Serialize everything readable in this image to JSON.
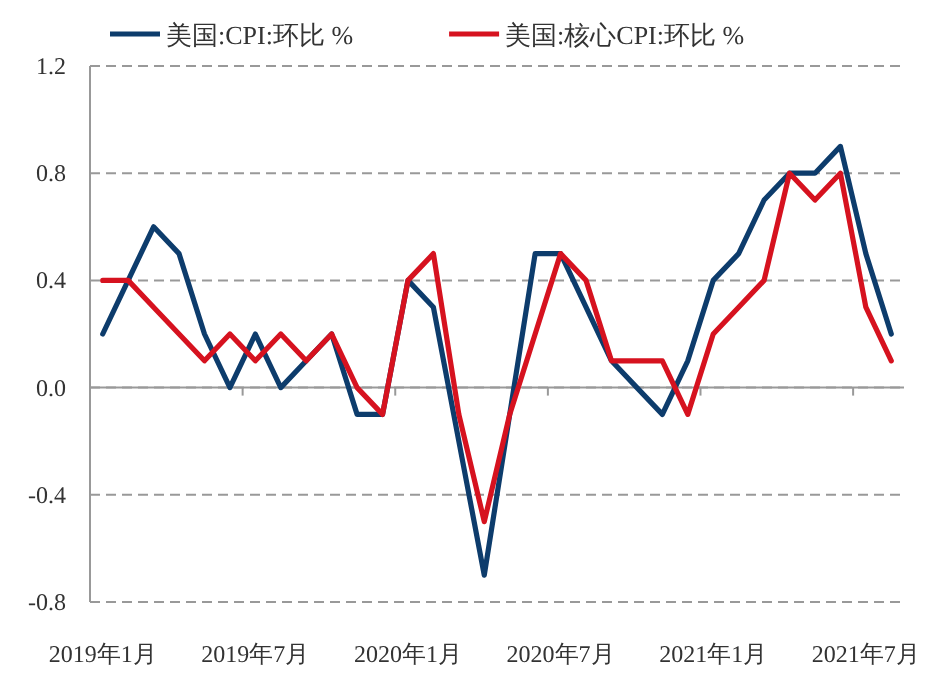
{
  "chart_data": {
    "type": "line",
    "categories": [
      "2019年1月",
      null,
      null,
      null,
      null,
      null,
      "2019年7月",
      null,
      null,
      null,
      null,
      null,
      "2020年1月",
      null,
      null,
      null,
      null,
      null,
      "2020年7月",
      null,
      null,
      null,
      null,
      null,
      "2021年1月",
      null,
      null,
      null,
      null,
      null,
      "2021年7月",
      null
    ],
    "series": [
      {
        "name": "美国:CPI:环比 %",
        "color": "#0d3c6c",
        "values": [
          0.2,
          0.4,
          0.6,
          0.5,
          0.2,
          0.0,
          0.2,
          0.0,
          0.1,
          0.2,
          -0.1,
          -0.1,
          0.4,
          0.3,
          -0.2,
          -0.7,
          -0.1,
          0.5,
          0.5,
          0.3,
          0.1,
          0.0,
          -0.1,
          0.1,
          0.4,
          0.5,
          0.7,
          0.8,
          0.8,
          0.9,
          0.5,
          0.2
        ]
      },
      {
        "name": "美国:核心CPI:环比 %",
        "color": "#d6121f",
        "values": [
          0.4,
          0.4,
          0.3,
          0.2,
          0.1,
          0.2,
          0.1,
          0.2,
          0.1,
          0.2,
          0.0,
          -0.1,
          0.4,
          0.5,
          -0.1,
          -0.5,
          -0.1,
          0.2,
          0.5,
          0.4,
          0.1,
          0.1,
          0.1,
          -0.1,
          0.2,
          0.3,
          0.4,
          0.8,
          0.7,
          0.8,
          0.3,
          0.1
        ]
      }
    ],
    "ylim": [
      -0.8,
      1.2
    ],
    "yticks": [
      {
        "value": 1.2,
        "label": "1.2"
      },
      {
        "value": 0.8,
        "label": "0.8"
      },
      {
        "value": 0.4,
        "label": "0.4"
      },
      {
        "value": 0,
        "label": "0.0"
      },
      {
        "value": -0.4,
        "label": "-0.4"
      },
      {
        "value": -0.8,
        "label": "-0.8"
      }
    ],
    "grid": "y",
    "legend": "top",
    "line_style": "solid"
  }
}
